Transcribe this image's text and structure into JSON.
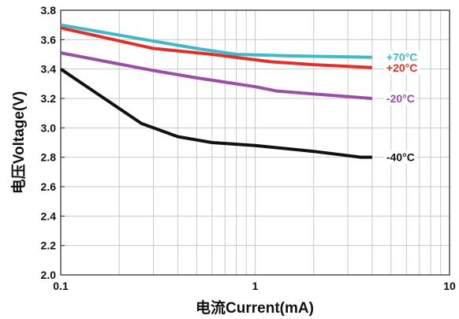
{
  "chart_data": {
    "type": "line",
    "xscale": "log",
    "xlim": [
      0.1,
      10
    ],
    "ylim": [
      2.0,
      3.8
    ],
    "x_major_ticks": [
      0.1,
      1,
      10
    ],
    "x_tick_labels": [
      "0.1",
      "1",
      "10"
    ],
    "y_ticks": [
      2.0,
      2.2,
      2.4,
      2.6,
      2.8,
      3.0,
      3.2,
      3.4,
      3.6,
      3.8
    ],
    "y_tick_labels": [
      "2.0",
      "2.2",
      "2.4",
      "2.6",
      "2.8",
      "3.0",
      "3.2",
      "3.4",
      "3.6",
      "3.8"
    ],
    "xlabel": "电流Current(mA)",
    "ylabel": "电压Voltage(V)",
    "grid": true,
    "legend_placement": "right (inline at line ends)",
    "series": [
      {
        "name": "+70°C",
        "color": "#3fb8c8",
        "points": [
          [
            0.1,
            3.7
          ],
          [
            0.3,
            3.59
          ],
          [
            0.5,
            3.54
          ],
          [
            0.8,
            3.5
          ],
          [
            1.5,
            3.49
          ],
          [
            4.0,
            3.48
          ]
        ]
      },
      {
        "name": "+20°C",
        "color": "#e1302a",
        "points": [
          [
            0.1,
            3.68
          ],
          [
            0.3,
            3.54
          ],
          [
            0.6,
            3.5
          ],
          [
            1.2,
            3.45
          ],
          [
            2.0,
            3.43
          ],
          [
            4.0,
            3.41
          ]
        ]
      },
      {
        "name": "-20°C",
        "color": "#9b4ea8",
        "points": [
          [
            0.1,
            3.51
          ],
          [
            0.3,
            3.39
          ],
          [
            0.5,
            3.34
          ],
          [
            1.0,
            3.28
          ],
          [
            1.3,
            3.25
          ],
          [
            4.0,
            3.2
          ]
        ]
      },
      {
        "name": "-40°C",
        "color": "#121212",
        "points": [
          [
            0.1,
            3.4
          ],
          [
            0.26,
            3.03
          ],
          [
            0.4,
            2.94
          ],
          [
            0.6,
            2.9
          ],
          [
            1.0,
            2.88
          ],
          [
            2.0,
            2.84
          ],
          [
            3.5,
            2.8
          ],
          [
            4.0,
            2.8
          ]
        ]
      }
    ]
  }
}
